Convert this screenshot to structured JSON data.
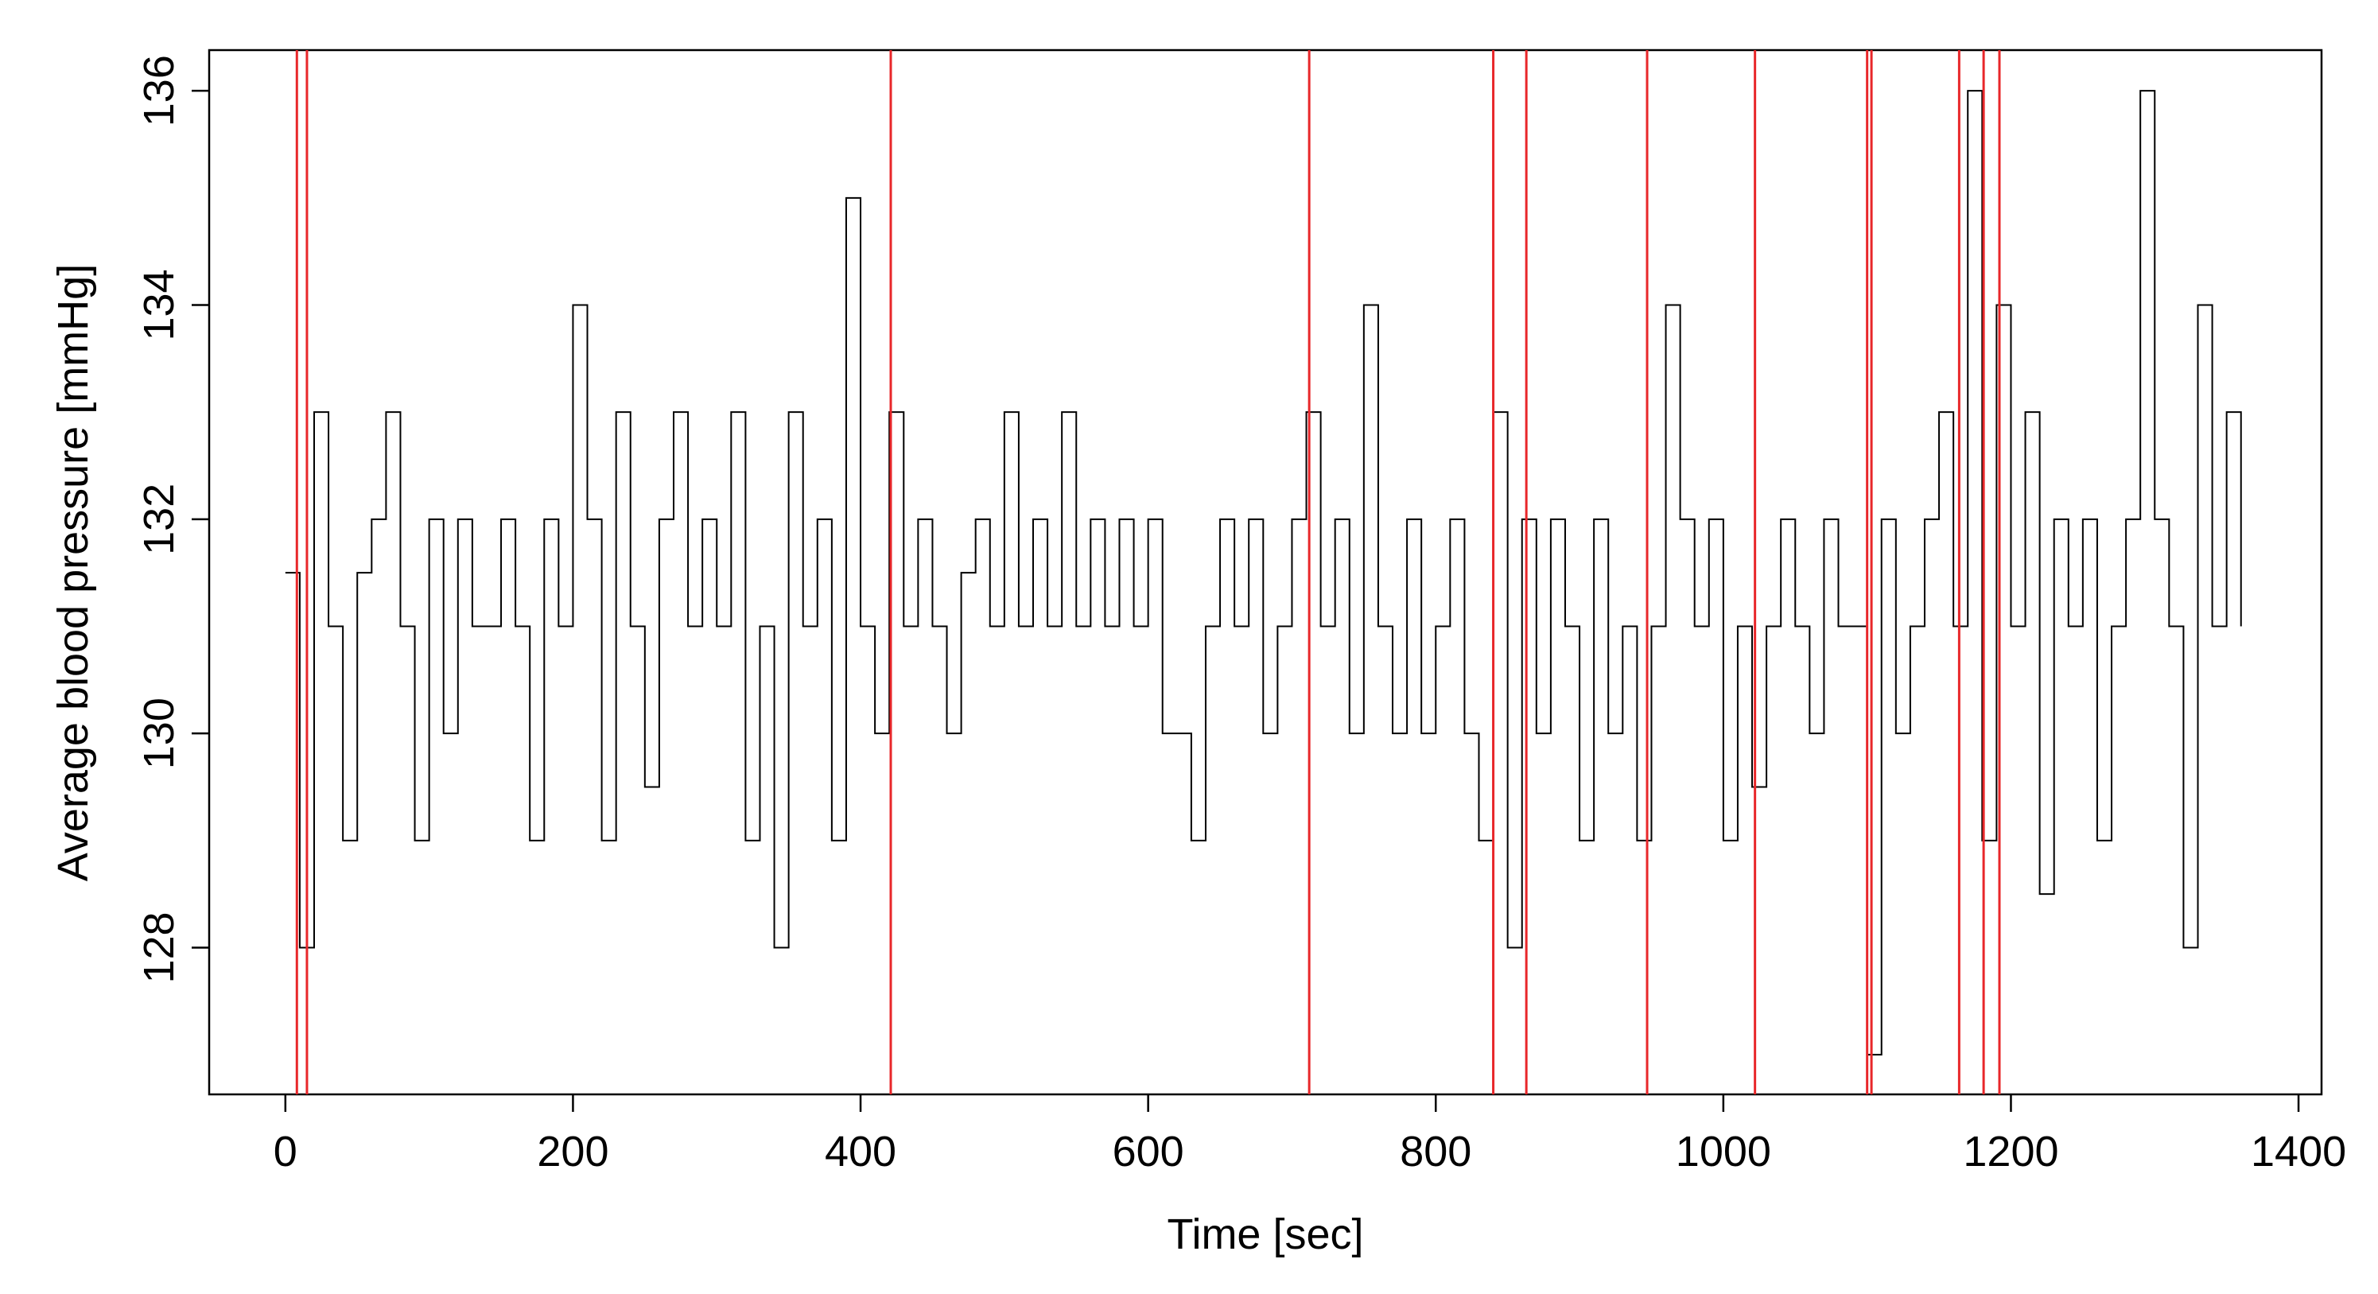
{
  "chart_data": {
    "type": "line",
    "step": true,
    "x_label": "Time [sec]",
    "y_label": "Average blood pressure [mmHg]",
    "xlim": [
      -53,
      1416
    ],
    "ylim": [
      126.63,
      136.38
    ],
    "xticks": [
      0,
      200,
      400,
      600,
      800,
      1000,
      1200,
      1400
    ],
    "yticks": [
      128,
      130,
      132,
      134,
      136
    ],
    "grid": false,
    "vlines": [
      8,
      15,
      421,
      712,
      840,
      863,
      947,
      1022,
      1100,
      1103,
      1164,
      1181,
      1192
    ],
    "vline_color": "#e8272a",
    "x": [
      0,
      10,
      20,
      30,
      40,
      50,
      60,
      70,
      80,
      90,
      100,
      110,
      120,
      130,
      140,
      150,
      160,
      170,
      180,
      190,
      200,
      210,
      220,
      230,
      240,
      250,
      260,
      270,
      280,
      290,
      300,
      310,
      320,
      330,
      340,
      350,
      360,
      370,
      380,
      390,
      400,
      410,
      420,
      430,
      440,
      450,
      460,
      470,
      480,
      490,
      500,
      510,
      520,
      530,
      540,
      550,
      560,
      570,
      580,
      590,
      600,
      610,
      620,
      630,
      640,
      650,
      660,
      670,
      680,
      690,
      700,
      710,
      720,
      730,
      740,
      750,
      760,
      770,
      780,
      790,
      800,
      810,
      820,
      830,
      840,
      850,
      860,
      870,
      880,
      890,
      900,
      910,
      920,
      930,
      940,
      950,
      960,
      970,
      980,
      990,
      1000,
      1010,
      1020,
      1030,
      1040,
      1050,
      1060,
      1070,
      1080,
      1090,
      1100,
      1110,
      1120,
      1130,
      1140,
      1150,
      1160,
      1170,
      1180,
      1190,
      1200,
      1210,
      1220,
      1230,
      1240,
      1250,
      1260,
      1270,
      1280,
      1290,
      1300,
      1310,
      1320,
      1330,
      1340,
      1350,
      1360
    ],
    "series": [
      {
        "name": "Average blood pressure",
        "color": "#000000",
        "values": [
          131.5,
          128,
          133,
          131,
          129,
          131.5,
          132,
          133,
          131,
          129,
          132,
          130,
          132,
          131,
          131,
          132,
          131,
          129,
          132,
          131,
          134,
          132,
          129,
          133,
          131,
          129.5,
          132,
          133,
          131,
          132,
          131,
          133,
          129,
          131,
          128,
          133,
          131,
          132,
          129,
          135,
          131,
          130,
          133,
          131,
          132,
          131,
          130,
          131.5,
          132,
          131,
          133,
          131,
          132,
          131,
          133,
          131,
          132,
          131,
          132,
          131,
          132,
          130,
          130,
          129,
          131,
          132,
          131,
          132,
          130,
          131,
          132,
          133,
          131,
          132,
          130,
          134,
          131,
          130,
          132,
          130,
          131,
          132,
          130,
          129,
          133,
          128,
          132,
          130,
          132,
          131,
          129,
          132,
          130,
          131,
          129,
          131,
          134,
          132,
          131,
          132,
          129,
          131,
          129.5,
          131,
          132,
          131,
          130,
          132,
          131,
          131,
          127,
          132,
          130,
          131,
          132,
          133,
          131,
          136,
          129,
          134,
          131,
          133,
          128.5,
          132,
          131,
          132,
          129,
          131,
          132,
          136,
          132,
          131,
          128,
          134,
          131,
          133,
          131
        ]
      }
    ]
  }
}
